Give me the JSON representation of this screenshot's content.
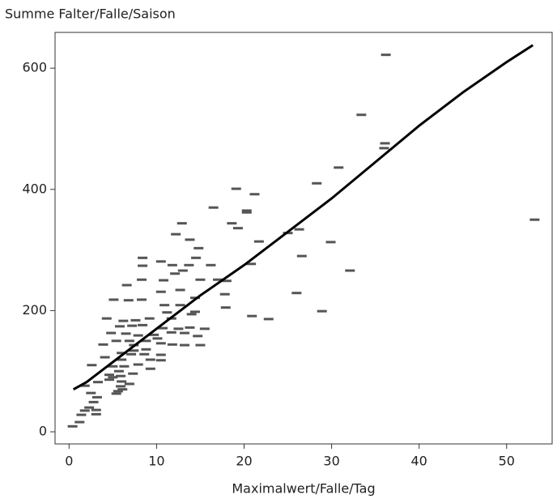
{
  "chart_data": {
    "type": "scatter",
    "ylabel": "Summe Falter/Falle/Saison",
    "xlabel": "Maximalwert/Falle/Tag",
    "xlim": [
      -1.6,
      55.2
    ],
    "ylim": [
      -20,
      659
    ],
    "xticks": [
      0,
      10,
      20,
      30,
      40,
      50
    ],
    "yticks": [
      0,
      200,
      400,
      600
    ],
    "series": [
      {
        "type": "scatter",
        "color": "#555555",
        "x": [
          36.2,
          33.4,
          30.8,
          36.1,
          36.0,
          28.3,
          53.2,
          32.1,
          29.9,
          26.6,
          26.0,
          28.9,
          20.9,
          22.8,
          19.1,
          21.2,
          20.3,
          20.3,
          16.5,
          18.6,
          19.3,
          21.7,
          20.8,
          18.0,
          17.8,
          17.9,
          26.3,
          25.0,
          16.2,
          17.0,
          12.9,
          12.2,
          13.8,
          14.8,
          8.4,
          8.4,
          10.5,
          11.8,
          13.7,
          14.5,
          6.6,
          8.3,
          10.8,
          12.1,
          13.0,
          15.0,
          5.1,
          6.8,
          8.3,
          10.5,
          12.7,
          14.4,
          10.9,
          12.7,
          14.4,
          14.0,
          4.3,
          6.2,
          7.6,
          9.2,
          11.7,
          5.8,
          7.2,
          8.4,
          10.7,
          12.5,
          13.8,
          15.5,
          4.8,
          6.5,
          7.9,
          9.7,
          11.7,
          13.2,
          14.7,
          3.9,
          5.4,
          6.9,
          8.8,
          10.5,
          11.8,
          13.2,
          15.0,
          4.1,
          6.0,
          7.4,
          8.6,
          10.5,
          2.6,
          5.0,
          6.3,
          7.9,
          9.3,
          10.5,
          4.6,
          5.9,
          7.3,
          1.8,
          3.3,
          4.6,
          5.0,
          6.0,
          5.9,
          5.6,
          6.1,
          2.5,
          3.2,
          2.8,
          2.3,
          1.8,
          3.1,
          1.4,
          3.1,
          1.2,
          0.4,
          5.4,
          6.9,
          5.7,
          6.0,
          8.8,
          7.4,
          9.3,
          7.1,
          10.1,
          11.2
        ],
        "values": [
          622,
          523,
          436,
          476,
          468,
          410,
          350,
          266,
          313,
          290,
          229,
          199,
          191,
          186,
          401,
          392,
          365,
          362,
          370,
          344,
          336,
          314,
          277,
          249,
          227,
          205,
          334,
          328,
          275,
          251,
          344,
          326,
          317,
          303,
          287,
          274,
          281,
          275,
          275,
          287,
          242,
          251,
          250,
          261,
          266,
          251,
          218,
          217,
          218,
          231,
          234,
          221,
          209,
          209,
          198,
          194,
          187,
          183,
          184,
          187,
          187,
          174,
          175,
          176,
          171,
          170,
          172,
          170,
          163,
          162,
          159,
          160,
          164,
          163,
          158,
          144,
          150,
          150,
          150,
          146,
          144,
          143,
          143,
          123,
          130,
          134,
          128,
          127,
          110,
          108,
          108,
          111,
          104,
          118,
          94,
          92,
          96,
          76,
          82,
          86,
          90,
          83,
          75,
          67,
          70,
          64,
          57,
          49,
          40,
          35,
          36,
          28,
          29,
          16,
          9,
          63,
          79,
          100,
          119,
          136,
          143,
          119,
          128,
          154,
          197
        ]
      },
      {
        "type": "line",
        "color": "#000000",
        "x": [
          0.5,
          2,
          5,
          10,
          15,
          20,
          25,
          30,
          35,
          40,
          45,
          50,
          53
        ],
        "values": [
          70,
          82,
          115,
          170,
          225,
          275,
          330,
          385,
          445,
          505,
          560,
          610,
          638
        ]
      }
    ]
  }
}
